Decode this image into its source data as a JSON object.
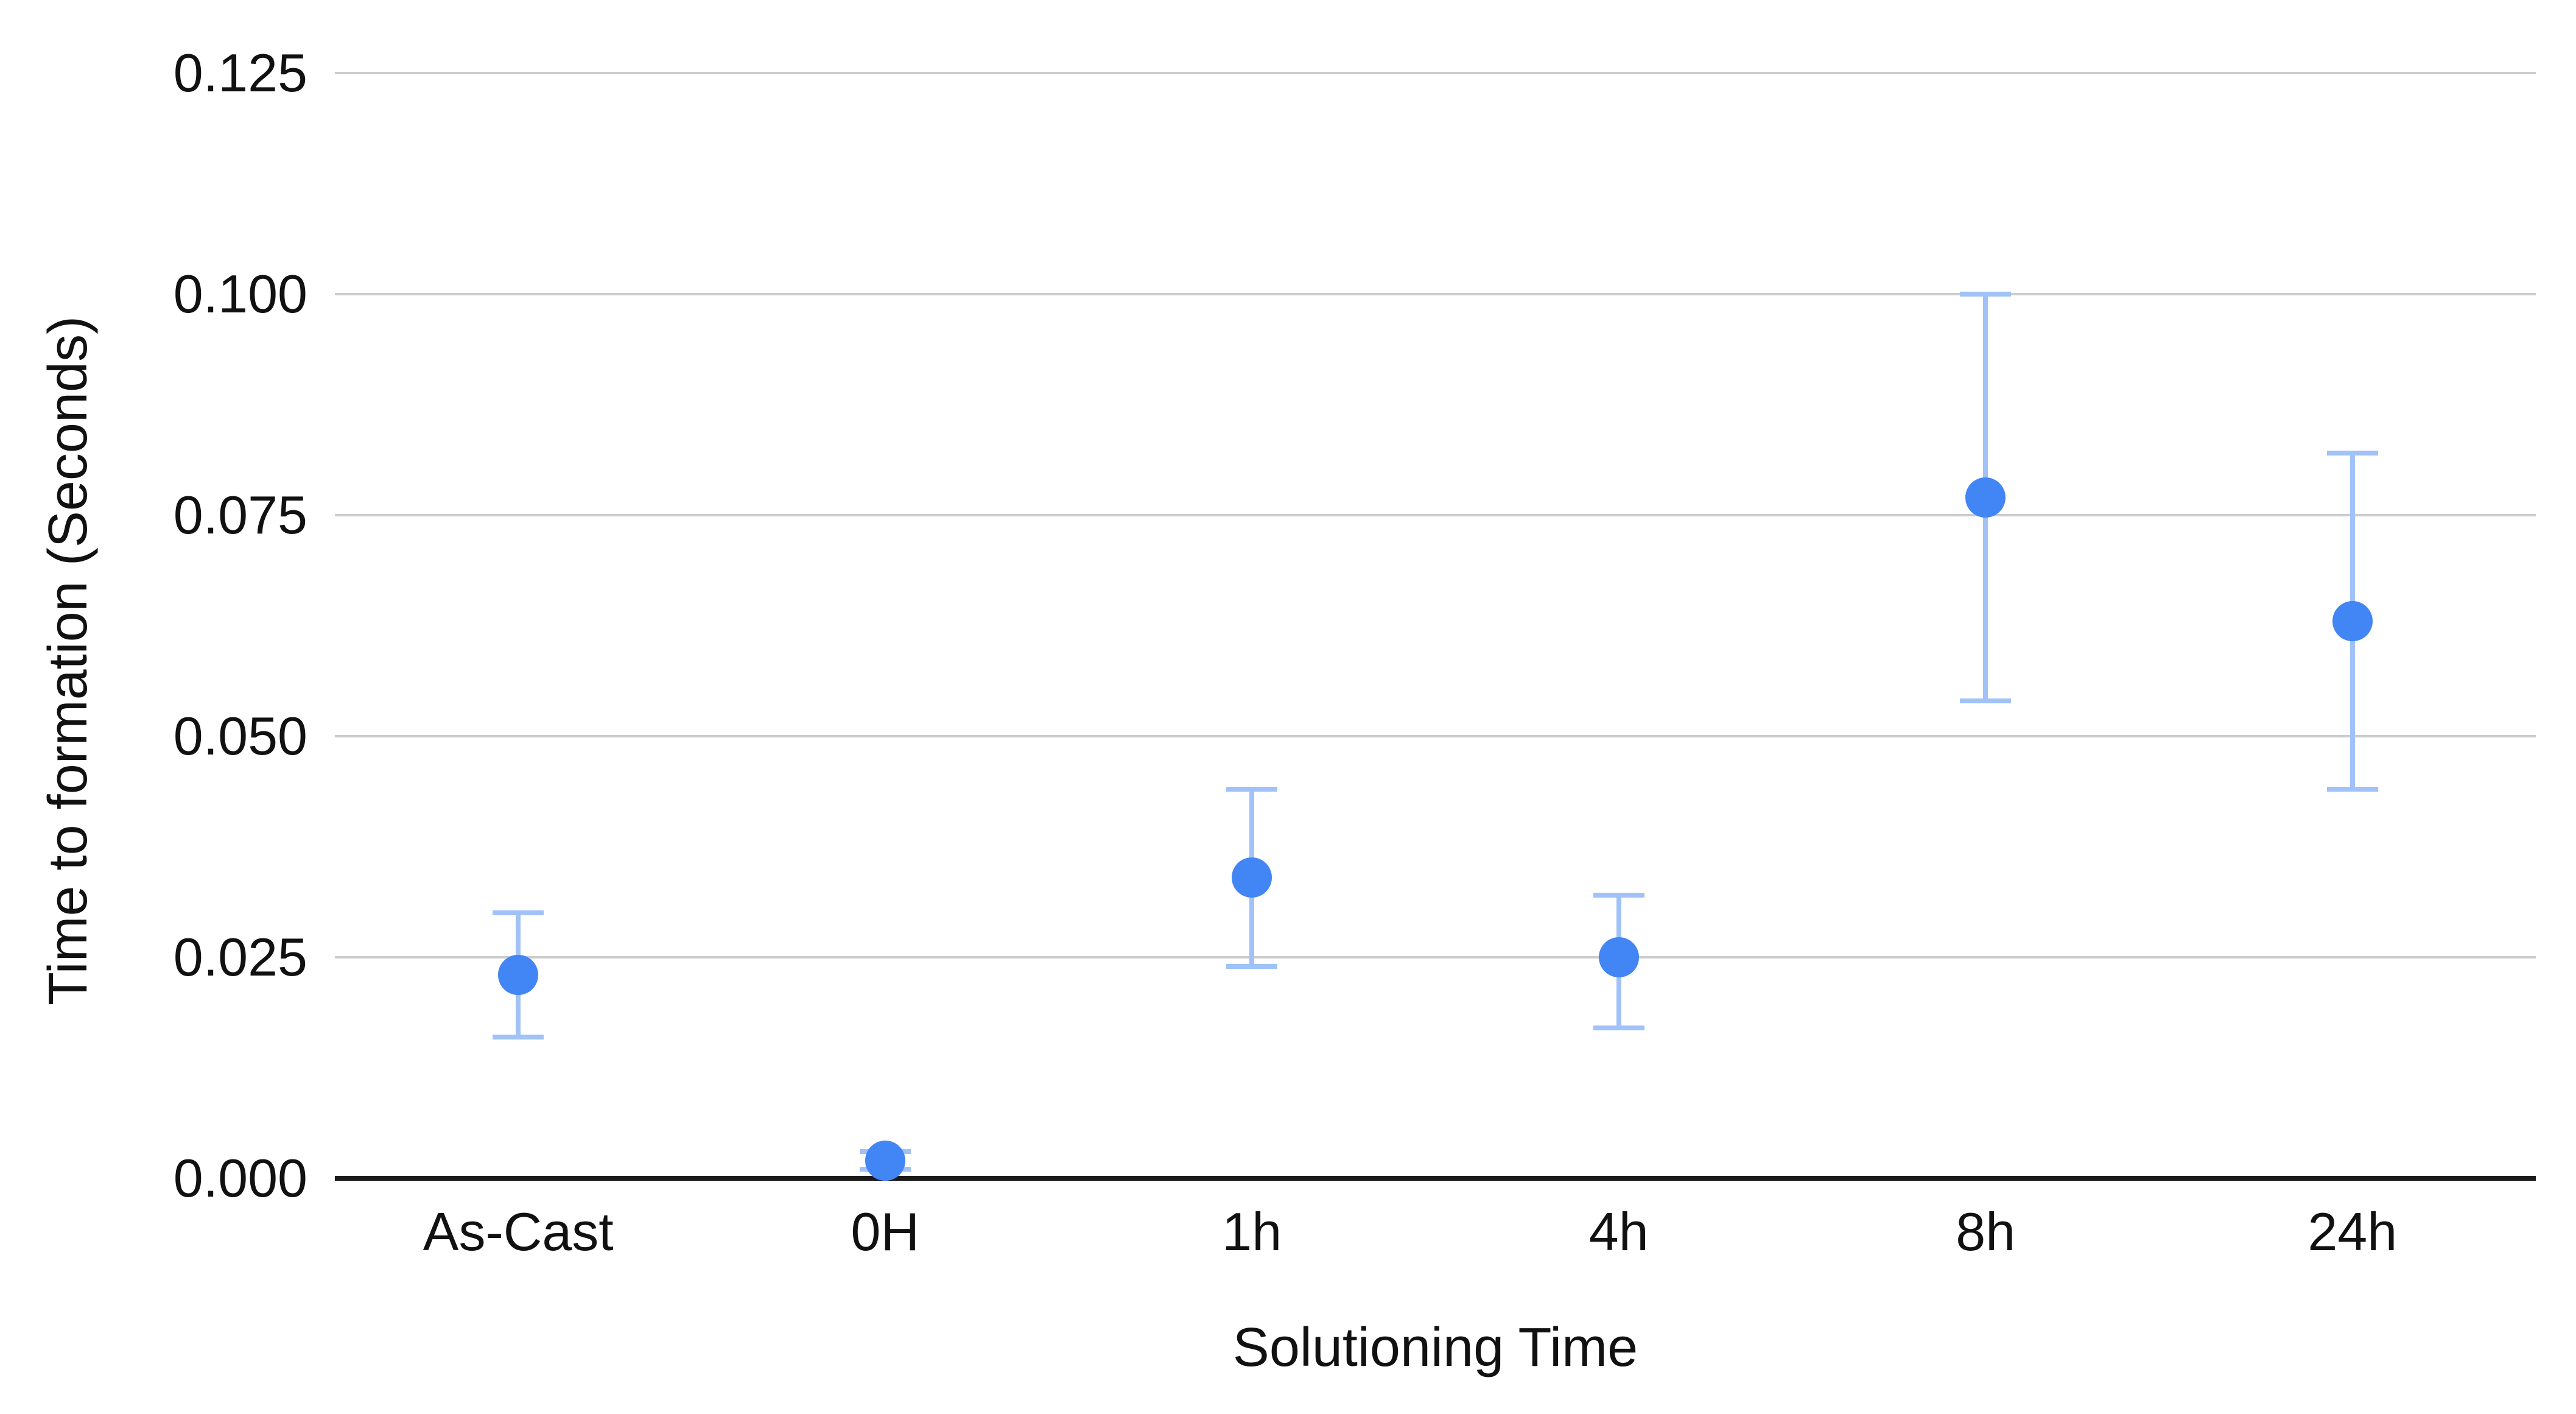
{
  "chart_data": {
    "type": "scatter",
    "title": "",
    "xlabel": "Solutioning Time",
    "ylabel": "Time to formation (Seconds)",
    "categories": [
      "As-Cast",
      "0H",
      "1h",
      "4h",
      "8h",
      "24h"
    ],
    "series": [
      {
        "name": "Time to formation",
        "values": [
          0.023,
          0.002,
          0.034,
          0.025,
          0.077,
          0.063
        ],
        "error_low": [
          0.016,
          0.001,
          0.024,
          0.017,
          0.054,
          0.044
        ],
        "error_high": [
          0.03,
          0.003,
          0.044,
          0.032,
          0.1,
          0.082
        ]
      }
    ],
    "ylim": [
      0,
      0.125
    ],
    "yticks": [
      0.125,
      0.1,
      0.075,
      0.05,
      0.025,
      0.0
    ],
    "ytick_labels": [
      "0.125",
      "0.100",
      "0.075",
      "0.050",
      "0.025",
      "0.000"
    ],
    "grid": true,
    "legend": false,
    "colors": {
      "point": "#4285f4",
      "error_bar": "#a0c2f8",
      "gridline": "#cccccc",
      "axis_line": "#1b1b1b",
      "text": "#111111"
    }
  }
}
